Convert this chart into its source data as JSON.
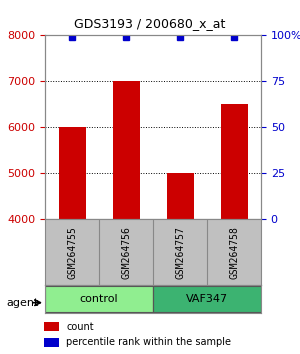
{
  "title": "GDS3193 / 200680_x_at",
  "samples": [
    "GSM264755",
    "GSM264756",
    "GSM264757",
    "GSM264758"
  ],
  "counts": [
    6000,
    7000,
    5000,
    6500
  ],
  "percentile_ranks": [
    99,
    99,
    99,
    99
  ],
  "groups": [
    "control",
    "control",
    "VAF347",
    "VAF347"
  ],
  "group_colors": [
    "#90EE90",
    "#90EE90",
    "#3CB371",
    "#3CB371"
  ],
  "group_labels": [
    "control",
    "VAF347"
  ],
  "group_label_colors": [
    "#90EE90",
    "#3CB371"
  ],
  "bar_color": "#CC0000",
  "percentile_color": "#0000CC",
  "ylim_left": [
    4000,
    8000
  ],
  "ylim_right": [
    0,
    100
  ],
  "yticks_left": [
    4000,
    5000,
    6000,
    7000,
    8000
  ],
  "yticks_right": [
    0,
    25,
    50,
    75,
    100
  ],
  "ytick_labels_right": [
    "0",
    "25",
    "50",
    "75",
    "100%"
  ],
  "xlabel": "",
  "background_color": "#ffffff",
  "plot_bg_color": "#ffffff",
  "grid_color": "#000000",
  "left_tick_color": "#CC0000",
  "right_tick_color": "#0000CC",
  "legend_count_label": "count",
  "legend_pct_label": "percentile rank within the sample",
  "agent_label": "agent",
  "sample_box_color": "#C0C0C0"
}
